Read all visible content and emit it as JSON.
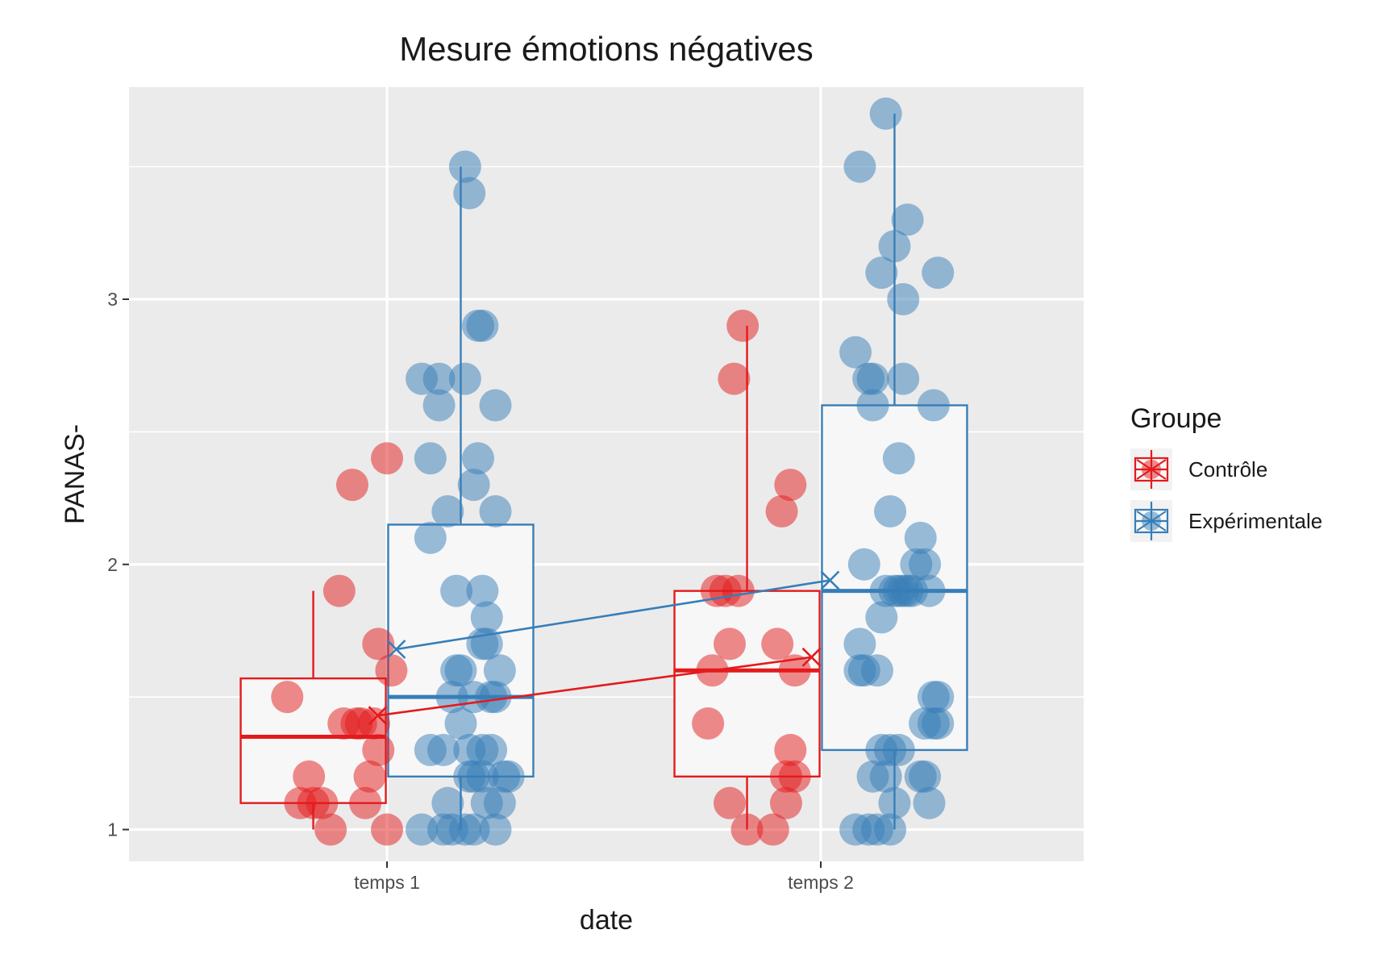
{
  "chart_data": {
    "type": "boxplot",
    "title": "Mesure émotions négatives",
    "xlabel": "date",
    "ylabel": "PANAS-",
    "categories": [
      "temps 1",
      "temps 2"
    ],
    "y_ticks": [
      1,
      2,
      3
    ],
    "ylim": [
      0.88,
      3.8
    ],
    "grid": true,
    "legend": {
      "title": "Groupe",
      "position": "right"
    },
    "series": [
      {
        "name": "Contrôle",
        "color": "#e41a1c",
        "boxes": [
          {
            "category": "temps 1",
            "min": 1.0,
            "q1": 1.1,
            "median": 1.35,
            "q3": 1.57,
            "max": 1.9
          },
          {
            "category": "temps 2",
            "min": 1.0,
            "q1": 1.2,
            "median": 1.6,
            "q3": 1.9,
            "max": 2.9
          }
        ],
        "means": [
          1.43,
          1.65
        ],
        "points": [
          [
            [
              -0.23,
              1.5
            ],
            [
              -0.2,
              1.1
            ],
            [
              -0.18,
              1.2
            ],
            [
              -0.17,
              1.1
            ],
            [
              -0.15,
              1.1
            ],
            [
              -0.13,
              1.0
            ],
            [
              -0.1,
              1.4
            ],
            [
              -0.11,
              1.9
            ],
            [
              -0.08,
              2.3
            ],
            [
              -0.07,
              1.4
            ],
            [
              -0.06,
              1.4
            ],
            [
              -0.05,
              1.1
            ],
            [
              -0.04,
              1.2
            ],
            [
              -0.03,
              1.4
            ],
            [
              -0.02,
              1.3
            ],
            [
              -0.02,
              1.7
            ],
            [
              0.0,
              2.4
            ],
            [
              0.0,
              1.0
            ],
            [
              0.01,
              1.6
            ]
          ],
          [
            [
              -0.26,
              1.4
            ],
            [
              -0.25,
              1.6
            ],
            [
              -0.24,
              1.9
            ],
            [
              -0.22,
              1.9
            ],
            [
              -0.21,
              1.1
            ],
            [
              -0.21,
              1.7
            ],
            [
              -0.2,
              2.7
            ],
            [
              -0.19,
              1.9
            ],
            [
              -0.18,
              2.9
            ],
            [
              -0.17,
              1.0
            ],
            [
              -0.11,
              1.0
            ],
            [
              -0.1,
              1.7
            ],
            [
              -0.09,
              2.2
            ],
            [
              -0.08,
              1.2
            ],
            [
              -0.08,
              1.1
            ],
            [
              -0.07,
              2.3
            ],
            [
              -0.07,
              1.3
            ],
            [
              -0.06,
              1.2
            ],
            [
              -0.06,
              1.6
            ]
          ]
        ]
      },
      {
        "name": "Expérimentale",
        "color": "#377eb8",
        "boxes": [
          {
            "category": "temps 1",
            "min": 1.0,
            "q1": 1.2,
            "median": 1.5,
            "q3": 2.15,
            "max": 3.5
          },
          {
            "category": "temps 2",
            "min": 1.0,
            "q1": 1.3,
            "median": 1.9,
            "q3": 2.6,
            "max": 3.7
          }
        ],
        "means": [
          1.68,
          1.94
        ],
        "points": [
          [
            [
              0.08,
              2.7
            ],
            [
              0.08,
              1.0
            ],
            [
              0.1,
              2.4
            ],
            [
              0.1,
              2.1
            ],
            [
              0.1,
              1.3
            ],
            [
              0.12,
              2.7
            ],
            [
              0.12,
              2.6
            ],
            [
              0.13,
              1.3
            ],
            [
              0.13,
              1.0
            ],
            [
              0.14,
              2.2
            ],
            [
              0.14,
              1.1
            ],
            [
              0.15,
              1.5
            ],
            [
              0.15,
              1.0
            ],
            [
              0.16,
              1.9
            ],
            [
              0.16,
              1.6
            ],
            [
              0.17,
              1.6
            ],
            [
              0.17,
              1.4
            ],
            [
              0.18,
              2.7
            ],
            [
              0.18,
              1.0
            ],
            [
              0.18,
              3.5
            ],
            [
              0.19,
              1.2
            ],
            [
              0.19,
              1.3
            ],
            [
              0.19,
              3.4
            ],
            [
              0.2,
              1.0
            ],
            [
              0.2,
              1.2
            ],
            [
              0.2,
              2.3
            ],
            [
              0.2,
              1.5
            ],
            [
              0.21,
              2.4
            ],
            [
              0.21,
              2.9
            ],
            [
              0.22,
              1.2
            ],
            [
              0.22,
              1.9
            ],
            [
              0.22,
              2.9
            ],
            [
              0.22,
              1.7
            ],
            [
              0.22,
              1.3
            ],
            [
              0.23,
              1.8
            ],
            [
              0.23,
              1.7
            ],
            [
              0.23,
              1.1
            ],
            [
              0.24,
              1.3
            ],
            [
              0.24,
              1.5
            ],
            [
              0.25,
              1.0
            ],
            [
              0.25,
              2.6
            ],
            [
              0.25,
              1.5
            ],
            [
              0.25,
              2.2
            ],
            [
              0.26,
              1.6
            ],
            [
              0.26,
              1.1
            ],
            [
              0.27,
              1.2
            ],
            [
              0.28,
              1.2
            ]
          ],
          [
            [
              0.08,
              2.8
            ],
            [
              0.08,
              1.0
            ],
            [
              0.09,
              1.7
            ],
            [
              0.09,
              1.6
            ],
            [
              0.09,
              3.5
            ],
            [
              0.1,
              2.0
            ],
            [
              0.1,
              1.6
            ],
            [
              0.11,
              1.0
            ],
            [
              0.11,
              2.7
            ],
            [
              0.12,
              2.7
            ],
            [
              0.12,
              2.6
            ],
            [
              0.12,
              1.2
            ],
            [
              0.13,
              1.6
            ],
            [
              0.13,
              1.0
            ],
            [
              0.14,
              1.3
            ],
            [
              0.14,
              3.1
            ],
            [
              0.14,
              1.8
            ],
            [
              0.15,
              1.2
            ],
            [
              0.15,
              3.7
            ],
            [
              0.15,
              1.9
            ],
            [
              0.16,
              2.2
            ],
            [
              0.16,
              1.3
            ],
            [
              0.16,
              1.0
            ],
            [
              0.17,
              3.2
            ],
            [
              0.17,
              1.1
            ],
            [
              0.17,
              1.9
            ],
            [
              0.18,
              2.4
            ],
            [
              0.18,
              1.9
            ],
            [
              0.18,
              1.3
            ],
            [
              0.19,
              2.7
            ],
            [
              0.19,
              3.0
            ],
            [
              0.19,
              1.9
            ],
            [
              0.2,
              3.3
            ],
            [
              0.2,
              1.9
            ],
            [
              0.21,
              1.9
            ],
            [
              0.22,
              2.0
            ],
            [
              0.23,
              1.2
            ],
            [
              0.23,
              2.1
            ],
            [
              0.24,
              2.0
            ],
            [
              0.24,
              1.4
            ],
            [
              0.24,
              1.2
            ],
            [
              0.25,
              1.9
            ],
            [
              0.25,
              1.1
            ],
            [
              0.26,
              1.5
            ],
            [
              0.26,
              1.4
            ],
            [
              0.26,
              2.6
            ],
            [
              0.27,
              1.5
            ],
            [
              0.27,
              1.4
            ],
            [
              0.27,
              3.1
            ]
          ]
        ]
      }
    ]
  }
}
